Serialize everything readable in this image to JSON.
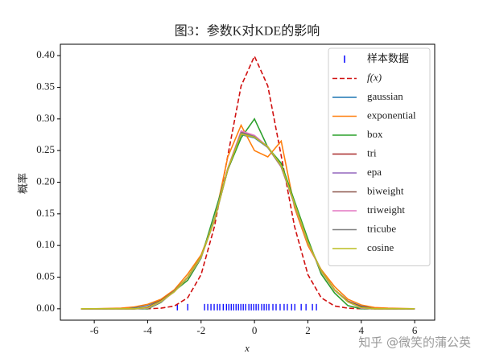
{
  "chart_data": {
    "type": "line",
    "title": "图3：参数K对KDE的影响",
    "xlabel": "x",
    "ylabel": "概率",
    "watermark": "知乎 @微笑的蒲公英",
    "legend": "upper right",
    "xlim": [
      -7.27,
      6.75
    ],
    "ylim": [
      -0.018,
      0.418
    ],
    "xticks": [
      -6,
      -4,
      -2,
      0,
      2,
      4,
      6
    ],
    "yticks": [
      {
        "value": 0,
        "label": "0.00"
      },
      {
        "value": 0.05,
        "label": "0.05"
      },
      {
        "value": 0.1,
        "label": "0.10"
      },
      {
        "value": 0.15,
        "label": "0.15"
      },
      {
        "value": 0.2,
        "label": "0.20"
      },
      {
        "value": 0.25,
        "label": "0.25"
      },
      {
        "value": 0.3,
        "label": "0.30"
      },
      {
        "value": 0.35,
        "label": "0.35"
      },
      {
        "value": 0.4,
        "label": "0.40"
      }
    ],
    "x": [
      -6.5,
      -6,
      -5.5,
      -5,
      -4.5,
      -4,
      -3.5,
      -3,
      -2.5,
      -2,
      -1.5,
      -1,
      -0.5,
      0,
      0.5,
      1,
      1.5,
      2,
      2.5,
      3,
      3.5,
      4,
      4.5,
      5,
      5.5,
      6
    ],
    "series": [
      {
        "name": "样本数据",
        "color": "#0000ff",
        "style": "rug",
        "x": [
          -2.89,
          -2.5,
          -1.87,
          -1.75,
          -1.63,
          -1.51,
          -1.39,
          -1.3,
          -1.17,
          -1.05,
          -0.96,
          -0.87,
          -0.78,
          -0.69,
          -0.6,
          -0.51,
          -0.42,
          -0.33,
          -0.21,
          -0.12,
          -0.03,
          0.06,
          0.15,
          0.27,
          0.36,
          0.45,
          0.54,
          0.69,
          0.81,
          0.96,
          1.11,
          1.23,
          1.39,
          1.51,
          1.75,
          1.93,
          2.17,
          2.32
        ]
      },
      {
        "name": "f(x)",
        "color": "#d01010",
        "style": "dashed",
        "values": [
          0,
          0,
          0,
          0,
          0,
          0.0001,
          0.0009,
          0.0044,
          0.0175,
          0.054,
          0.13,
          0.242,
          0.352,
          0.399,
          0.352,
          0.242,
          0.13,
          0.054,
          0.0175,
          0.0044,
          0.0009,
          0.0001,
          0,
          0,
          0,
          0
        ]
      },
      {
        "name": "gaussian",
        "color": "#1f77b4",
        "style": "solid",
        "values": [
          0,
          0,
          0,
          0.0005,
          0.002,
          0.006,
          0.014,
          0.028,
          0.05,
          0.083,
          0.14,
          0.22,
          0.275,
          0.27,
          0.255,
          0.225,
          0.165,
          0.105,
          0.06,
          0.03,
          0.012,
          0.004,
          0.001,
          0,
          0,
          0
        ]
      },
      {
        "name": "exponential",
        "color": "#ff7f0e",
        "style": "solid",
        "values": [
          0,
          0,
          0.0005,
          0.001,
          0.003,
          0.007,
          0.015,
          0.03,
          0.055,
          0.085,
          0.14,
          0.24,
          0.29,
          0.25,
          0.24,
          0.265,
          0.16,
          0.1,
          0.062,
          0.035,
          0.015,
          0.006,
          0.002,
          0.001,
          0.0005,
          0
        ]
      },
      {
        "name": "box",
        "color": "#2ca02c",
        "style": "solid",
        "values": [
          0,
          0,
          0,
          0,
          0,
          0,
          0.01,
          0.028,
          0.045,
          0.08,
          0.15,
          0.22,
          0.27,
          0.3,
          0.255,
          0.23,
          0.17,
          0.11,
          0.055,
          0.025,
          0.005,
          0,
          0,
          0,
          0,
          0
        ]
      },
      {
        "name": "tri",
        "color": "#a82828",
        "style": "solid",
        "values": [
          0,
          0,
          0,
          0,
          0,
          0.003,
          0.013,
          0.028,
          0.05,
          0.082,
          0.14,
          0.22,
          0.278,
          0.272,
          0.255,
          0.225,
          0.165,
          0.105,
          0.06,
          0.03,
          0.012,
          0.003,
          0,
          0,
          0,
          0
        ]
      },
      {
        "name": "epa",
        "color": "#9467bd",
        "style": "solid",
        "values": [
          0,
          0,
          0,
          0,
          0,
          0.002,
          0.012,
          0.027,
          0.05,
          0.081,
          0.14,
          0.222,
          0.276,
          0.271,
          0.256,
          0.226,
          0.166,
          0.104,
          0.06,
          0.03,
          0.011,
          0.002,
          0,
          0,
          0,
          0
        ]
      },
      {
        "name": "biweight",
        "color": "#8c564b",
        "style": "solid",
        "values": [
          0,
          0,
          0,
          0,
          0,
          0.002,
          0.012,
          0.028,
          0.049,
          0.082,
          0.141,
          0.221,
          0.279,
          0.273,
          0.255,
          0.224,
          0.165,
          0.105,
          0.059,
          0.03,
          0.011,
          0.002,
          0,
          0,
          0,
          0
        ]
      },
      {
        "name": "triweight",
        "color": "#e377c2",
        "style": "solid",
        "values": [
          0,
          0,
          0,
          0,
          0,
          0.001,
          0.011,
          0.027,
          0.049,
          0.081,
          0.142,
          0.222,
          0.281,
          0.274,
          0.256,
          0.224,
          0.164,
          0.104,
          0.059,
          0.029,
          0.011,
          0.001,
          0,
          0,
          0,
          0
        ]
      },
      {
        "name": "tricube",
        "color": "#7f7f7f",
        "style": "solid",
        "values": [
          0,
          0,
          0,
          0,
          0,
          0.002,
          0.012,
          0.028,
          0.05,
          0.082,
          0.14,
          0.221,
          0.278,
          0.272,
          0.255,
          0.225,
          0.165,
          0.105,
          0.06,
          0.03,
          0.011,
          0.002,
          0,
          0,
          0,
          0
        ]
      },
      {
        "name": "cosine",
        "color": "#bcbd22",
        "style": "solid",
        "values": [
          0,
          0,
          0,
          0,
          0,
          0.002,
          0.012,
          0.027,
          0.05,
          0.082,
          0.14,
          0.221,
          0.276,
          0.271,
          0.256,
          0.226,
          0.166,
          0.105,
          0.06,
          0.03,
          0.011,
          0.002,
          0,
          0,
          0,
          0
        ]
      }
    ]
  }
}
